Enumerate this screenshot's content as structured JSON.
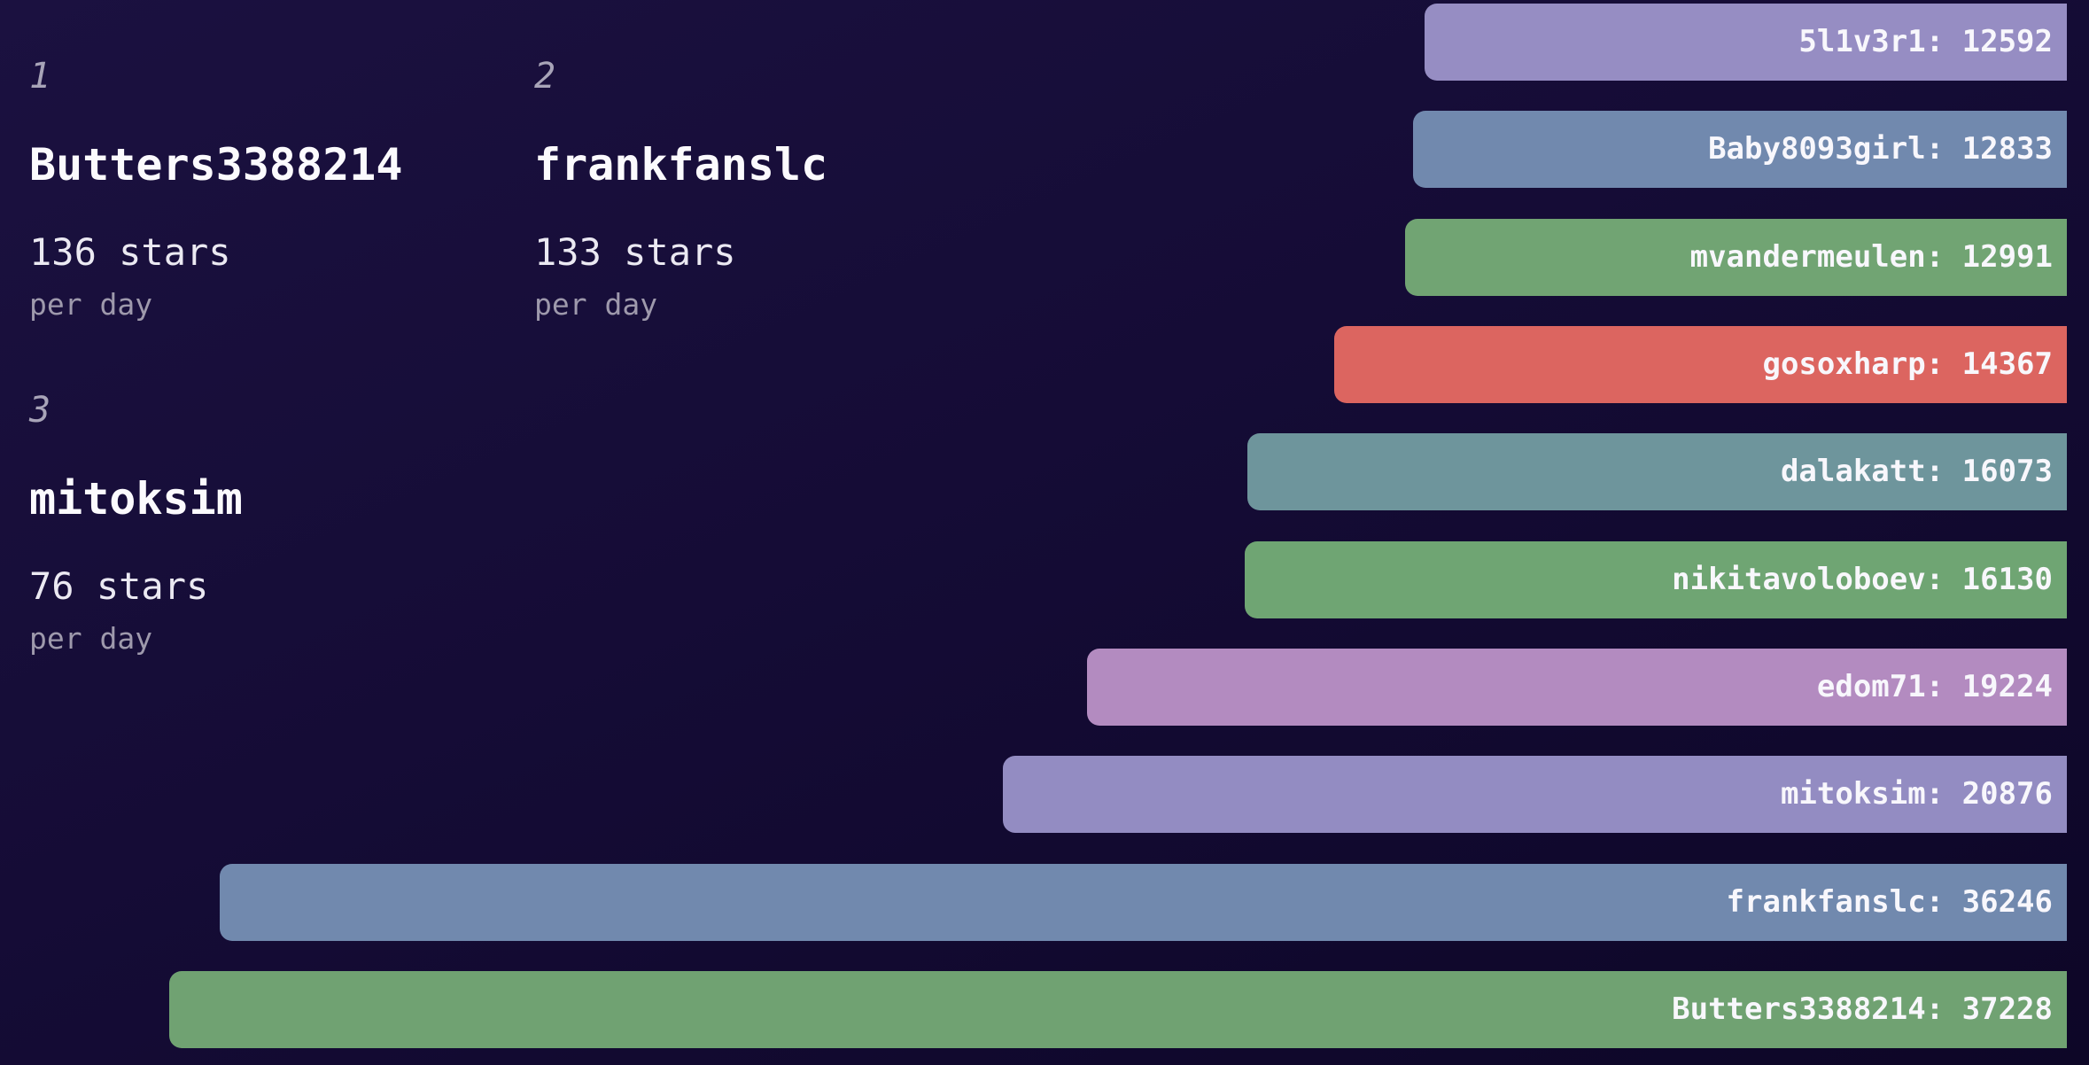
{
  "leaderboard": {
    "cards": [
      {
        "rank": "1",
        "name": "Butters3388214",
        "rate": "136 stars",
        "unit": "per day"
      },
      {
        "rank": "2",
        "name": "frankfanslc",
        "rate": "133 stars",
        "unit": "per day"
      },
      {
        "rank": "3",
        "name": "mitoksim",
        "rate": "76 stars",
        "unit": "per day"
      }
    ]
  },
  "chart_data": {
    "type": "bar",
    "orientation": "horizontal",
    "title": "",
    "xlabel": "",
    "ylabel": "",
    "axes_visible": false,
    "grid": false,
    "legend": "none",
    "xlim": [
      0,
      37228
    ],
    "max_value": 37228,
    "value_label_position": "inside-right",
    "bars": [
      {
        "name": "5l1v3r1",
        "value": 12592,
        "label": "5l1v3r1: 12592",
        "color": "#968dc3"
      },
      {
        "name": "Baby8093girl",
        "value": 12833,
        "label": "Baby8093girl: 12833",
        "color": "#7189ae"
      },
      {
        "name": "mvandermeulen",
        "value": 12991,
        "label": "mvandermeulen: 12991",
        "color": "#71a473"
      },
      {
        "name": "gosoxharp",
        "value": 14367,
        "label": "gosoxharp: 14367",
        "color": "#dc6560"
      },
      {
        "name": "dalakatt",
        "value": 16073,
        "label": "dalakatt: 16073",
        "color": "#6e959c"
      },
      {
        "name": "nikitavoloboev",
        "value": 16130,
        "label": "nikitavoloboev: 16130",
        "color": "#6fa573"
      },
      {
        "name": "edom71",
        "value": 19224,
        "label": "edom71: 19224",
        "color": "#b38bc0"
      },
      {
        "name": "mitoksim",
        "value": 20876,
        "label": "mitoksim: 20876",
        "color": "#938cc2"
      },
      {
        "name": "frankfanslc",
        "value": 36246,
        "label": "frankfanslc: 36246",
        "color": "#7189ae"
      },
      {
        "name": "Butters3388214",
        "value": 37228,
        "label": "Butters3388214: 37228",
        "color": "#70a272"
      }
    ],
    "bar_text_color": "#f8f7fc",
    "background_top_color": "#1b1140",
    "background_bottom_color": "#0d0627"
  }
}
